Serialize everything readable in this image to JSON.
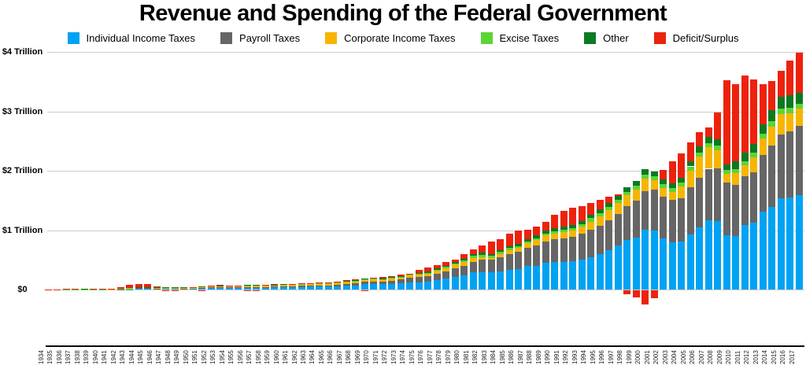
{
  "title": "Revenue and Spending of the Federal Government",
  "y_axis": {
    "ticks": [
      {
        "label": "$4 Trillion",
        "value": 4
      },
      {
        "label": "$3 Trillion",
        "value": 3
      },
      {
        "label": "$2 Trillion",
        "value": 2
      },
      {
        "label": "$1 Trillion",
        "value": 1
      },
      {
        "label": "$0",
        "value": 0
      }
    ]
  },
  "legend": [
    {
      "label": "Individual Income Taxes",
      "color": "#00A2F3"
    },
    {
      "label": "Payroll Taxes",
      "color": "#666666"
    },
    {
      "label": "Corporate Income Taxes",
      "color": "#F7B500"
    },
    {
      "label": "Excise Taxes",
      "color": "#5BD633"
    },
    {
      "label": "Other",
      "color": "#0B7A23"
    },
    {
      "label": "Deficit/Surplus",
      "color": "#ED220D"
    }
  ],
  "chart_data": {
    "type": "bar",
    "stacked": true,
    "title": "Revenue and Spending of the Federal Government",
    "unit": "billions of US dollars",
    "note": "Revenue sources stacked from zero; red = deficit stacked on top of revenue (spending above revenue), negative red values = surplus drawn below the zero line",
    "ylim_trillions": [
      -0.3,
      4.2
    ],
    "grid": true,
    "legend_position": "top",
    "x": [
      1934,
      1935,
      1936,
      1937,
      1938,
      1939,
      1940,
      1941,
      1942,
      1943,
      1944,
      1945,
      1946,
      1947,
      1948,
      1949,
      1950,
      1951,
      1952,
      1953,
      1954,
      1955,
      1956,
      1957,
      1958,
      1959,
      1960,
      1961,
      1962,
      1963,
      1964,
      1965,
      1966,
      1967,
      1968,
      1969,
      1970,
      1971,
      1972,
      1973,
      1974,
      1975,
      1976,
      1977,
      1978,
      1979,
      1980,
      1981,
      1982,
      1983,
      1984,
      1985,
      1986,
      1987,
      1988,
      1989,
      1990,
      1991,
      1992,
      1993,
      1994,
      1995,
      1996,
      1997,
      1998,
      1999,
      2000,
      2001,
      2002,
      2003,
      2004,
      2005,
      2006,
      2007,
      2008,
      2009,
      2010,
      2011,
      2012,
      2013,
      2014,
      2015,
      2016,
      2017
    ],
    "series": [
      {
        "name": "Individual Income Taxes",
        "color": "#00A2F3",
        "values": [
          0.4,
          0.5,
          0.7,
          1.1,
          1.3,
          1.0,
          0.9,
          1.3,
          3.3,
          6.5,
          19.7,
          18.4,
          16.1,
          17.9,
          19.3,
          15.6,
          15.8,
          21.6,
          27.9,
          29.8,
          29.5,
          28.7,
          32.2,
          35.6,
          34.7,
          36.7,
          40.7,
          41.3,
          45.6,
          47.6,
          48.7,
          48.8,
          55.4,
          61.5,
          68.7,
          87.2,
          90.4,
          86.2,
          94.7,
          103.2,
          119.0,
          122.4,
          131.6,
          157.6,
          181.0,
          217.8,
          244.1,
          285.9,
          297.7,
          288.9,
          298.4,
          334.5,
          349.0,
          392.6,
          401.2,
          445.7,
          466.9,
          467.8,
          476.0,
          509.7,
          543.1,
          590.2,
          656.4,
          737.5,
          828.6,
          879.5,
          1004.5,
          994.3,
          858.3,
          793.7,
          809.0,
          927.2,
          1043.9,
          1163.5,
          1145.7,
          915.3,
          898.5,
          1091.5,
          1132.2,
          1316.4,
          1394.6,
          1540.8,
          1546.1,
          1587.1
        ]
      },
      {
        "name": "Payroll Taxes",
        "color": "#666666",
        "values": [
          0.0,
          0.0,
          0.1,
          0.6,
          1.5,
          1.6,
          1.8,
          1.9,
          2.5,
          3.0,
          3.5,
          3.5,
          3.1,
          3.4,
          3.8,
          3.8,
          4.3,
          5.7,
          6.4,
          6.8,
          7.2,
          7.9,
          9.3,
          10.0,
          11.2,
          11.7,
          14.7,
          16.4,
          17.0,
          19.8,
          22.0,
          22.2,
          25.5,
          32.6,
          33.9,
          39.0,
          44.4,
          47.3,
          52.6,
          63.1,
          75.1,
          84.5,
          90.8,
          106.5,
          121.0,
          138.9,
          157.8,
          182.7,
          201.5,
          209.0,
          239.4,
          265.2,
          283.9,
          303.3,
          334.3,
          359.4,
          380.0,
          396.0,
          413.7,
          428.3,
          461.5,
          484.5,
          509.4,
          539.4,
          571.8,
          611.8,
          652.9,
          694.0,
          700.8,
          713.0,
          733.4,
          794.1,
          837.8,
          869.6,
          900.2,
          890.9,
          864.8,
          818.8,
          845.3,
          947.8,
          1023.5,
          1065.3,
          1115.1,
          1161.9
        ]
      },
      {
        "name": "Corporate Income Taxes",
        "color": "#F7B500",
        "values": [
          0.4,
          0.5,
          0.7,
          1.0,
          1.3,
          1.1,
          1.2,
          2.1,
          4.7,
          9.6,
          14.8,
          16.0,
          11.9,
          8.6,
          9.7,
          11.2,
          10.4,
          14.1,
          21.2,
          21.2,
          21.1,
          17.9,
          20.9,
          21.2,
          20.1,
          17.3,
          21.5,
          21.0,
          20.5,
          21.6,
          23.5,
          25.5,
          30.1,
          34.0,
          28.7,
          36.7,
          32.8,
          26.8,
          32.2,
          36.2,
          38.6,
          40.6,
          41.4,
          54.9,
          60.0,
          65.7,
          64.6,
          61.1,
          49.2,
          37.0,
          56.9,
          61.3,
          63.1,
          83.9,
          94.5,
          103.3,
          93.5,
          98.1,
          100.3,
          117.5,
          140.4,
          157.0,
          171.8,
          182.3,
          188.7,
          184.7,
          207.3,
          151.1,
          148.0,
          131.8,
          189.4,
          278.3,
          353.9,
          370.2,
          304.3,
          138.2,
          191.4,
          181.1,
          242.3,
          273.5,
          320.7,
          343.8,
          299.6,
          297.0
        ]
      },
      {
        "name": "Excise Taxes",
        "color": "#5BD633",
        "values": [
          1.4,
          1.4,
          1.6,
          1.9,
          1.9,
          1.9,
          2.0,
          2.6,
          3.4,
          4.1,
          4.8,
          6.3,
          7.0,
          7.2,
          7.4,
          7.5,
          7.6,
          8.6,
          8.9,
          9.9,
          9.9,
          9.1,
          9.9,
          10.5,
          10.6,
          10.6,
          11.7,
          11.9,
          12.5,
          13.2,
          13.7,
          14.6,
          13.1,
          13.7,
          14.1,
          15.2,
          15.7,
          16.6,
          15.5,
          16.3,
          16.8,
          16.6,
          17.0,
          17.5,
          18.4,
          18.7,
          24.3,
          40.8,
          36.3,
          35.3,
          37.4,
          36.0,
          32.9,
          32.5,
          35.2,
          34.4,
          35.3,
          42.4,
          45.6,
          48.1,
          55.2,
          57.5,
          54.0,
          56.9,
          57.7,
          70.4,
          68.9,
          66.2,
          67.0,
          67.5,
          69.9,
          73.1,
          74.0,
          65.1,
          67.3,
          62.5,
          66.9,
          72.4,
          79.1,
          84.0,
          93.4,
          98.3,
          95.0,
          83.8
        ]
      },
      {
        "name": "Other",
        "color": "#0B7A23",
        "values": [
          0.8,
          1.2,
          0.8,
          0.8,
          0.8,
          0.7,
          0.7,
          0.8,
          0.8,
          0.8,
          1.1,
          1.1,
          1.2,
          1.3,
          1.5,
          1.4,
          1.4,
          1.6,
          1.7,
          1.9,
          1.9,
          1.9,
          2.3,
          2.7,
          3.0,
          2.9,
          3.9,
          3.8,
          4.0,
          4.4,
          4.7,
          5.8,
          6.7,
          7.0,
          7.6,
          8.7,
          9.5,
          11.2,
          12.4,
          11.9,
          13.7,
          15.0,
          17.3,
          18.7,
          19.3,
          22.1,
          26.3,
          28.7,
          32.9,
          30.3,
          34.4,
          37.1,
          40.2,
          41.9,
          44.0,
          48.3,
          56.2,
          50.7,
          55.7,
          50.8,
          58.4,
          62.6,
          61.4,
          63.2,
          75.0,
          81.0,
          91.7,
          85.6,
          79.0,
          76.3,
          78.5,
          80.9,
          97.7,
          99.6,
          106.4,
          98.1,
          141.0,
          139.7,
          151.1,
          153.3,
          189.4,
          201.8,
          212.3,
          186.4
        ]
      },
      {
        "name": "Deficit/Surplus",
        "color": "#ED220D",
        "values": [
          3.6,
          2.8,
          4.3,
          2.2,
          0.1,
          2.8,
          2.9,
          4.9,
          20.5,
          54.6,
          47.6,
          47.6,
          15.9,
          -4.0,
          -11.8,
          -0.6,
          3.1,
          -6.1,
          1.5,
          6.5,
          1.2,
          3.0,
          -3.9,
          -3.4,
          2.8,
          12.8,
          -0.3,
          3.3,
          7.1,
          4.8,
          5.9,
          1.4,
          3.7,
          8.6,
          25.2,
          -3.2,
          2.8,
          23.0,
          23.4,
          14.9,
          6.1,
          53.2,
          73.7,
          53.7,
          59.2,
          40.7,
          73.8,
          79.0,
          128.0,
          207.8,
          185.4,
          212.3,
          221.2,
          149.7,
          155.2,
          152.6,
          221.0,
          269.2,
          290.3,
          255.1,
          203.2,
          164.0,
          107.4,
          21.9,
          -69.3,
          -125.6,
          -236.2,
          -128.2,
          157.8,
          377.6,
          412.7,
          318.3,
          248.2,
          160.7,
          458.6,
          1412.7,
          1294.4,
          1299.6,
          1087.0,
          679.5,
          484.6,
          438.5,
          584.7,
          665.4
        ]
      }
    ]
  }
}
